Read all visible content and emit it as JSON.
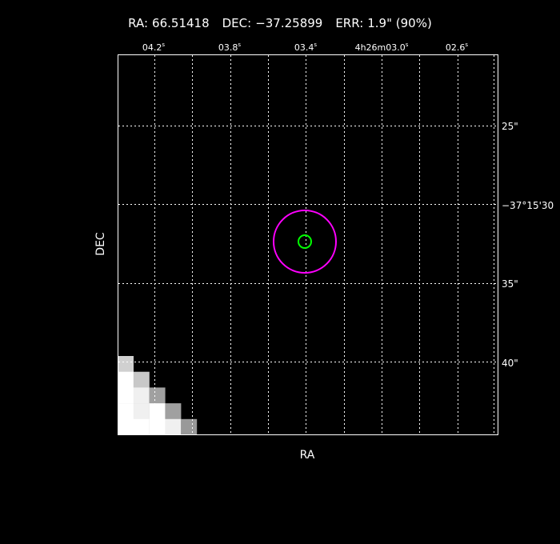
{
  "header": {
    "ra_label": "RA:",
    "ra": "66.51418",
    "dec_label": "DEC:",
    "dec": "−37.25899",
    "err_label": "ERR:",
    "err": "1.9\" (90%)"
  },
  "chart_data": {
    "type": "image",
    "xlabel": "RA",
    "ylabel": "DEC",
    "x_ticks": [
      {
        "label": "04.2",
        "sup": "s"
      },
      {
        "label": "03.8",
        "sup": "s"
      },
      {
        "label": "03.4",
        "sup": "s"
      },
      {
        "label": "4h26m03.0",
        "sup": "s"
      },
      {
        "label": "02.6",
        "sup": "s"
      }
    ],
    "y_ticks": [
      "25\"",
      "−37°15'30",
      "35\"",
      "40\""
    ],
    "grid": true,
    "markers": [
      {
        "name": "error-circle",
        "color": "#ff00ff"
      },
      {
        "name": "source-position",
        "color": "#00ff00"
      }
    ],
    "pixels": [
      [
        0,
        0,
        "#d0d0d0"
      ],
      [
        1,
        0,
        "#ffffff"
      ],
      [
        1,
        1,
        "#c8c8c8"
      ],
      [
        2,
        0,
        "#ffffff"
      ],
      [
        2,
        1,
        "#f0f0f0"
      ],
      [
        2,
        2,
        "#a0a0a0"
      ],
      [
        3,
        0,
        "#ffffff"
      ],
      [
        3,
        1,
        "#f0f0f0"
      ],
      [
        3,
        2,
        "#ffffff"
      ],
      [
        3,
        3,
        "#a0a0a0"
      ],
      [
        4,
        0,
        "#ffffff"
      ],
      [
        4,
        1,
        "#ffffff"
      ],
      [
        4,
        2,
        "#ffffff"
      ],
      [
        4,
        3,
        "#f0f0f0"
      ],
      [
        4,
        4,
        "#999999"
      ]
    ]
  }
}
